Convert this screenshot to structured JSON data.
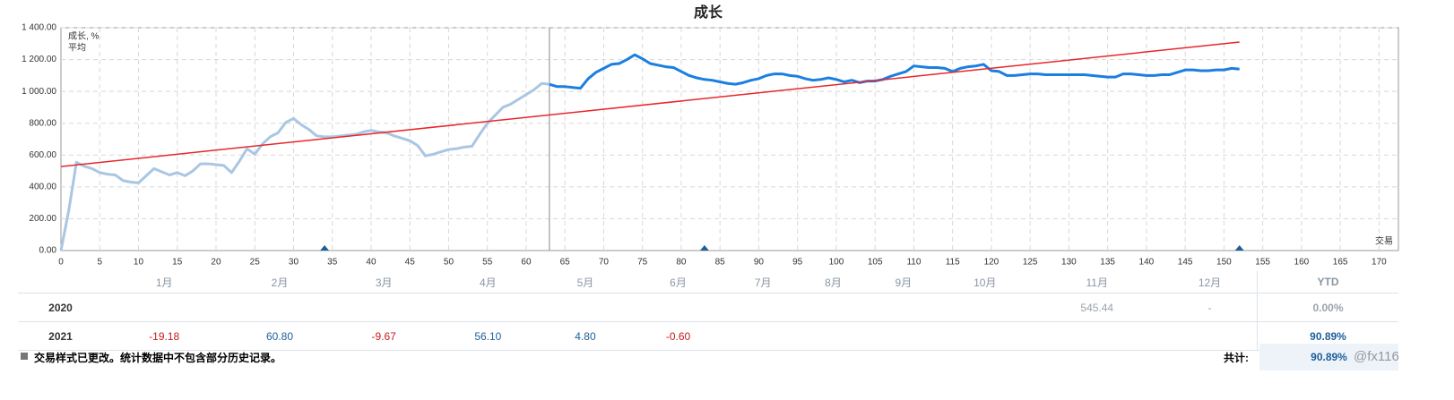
{
  "chart_data": {
    "type": "line",
    "title": "成长",
    "divider_x": 63,
    "history_color": "#a9c6e2",
    "xlim": [
      0,
      172.5
    ],
    "ylim": [
      0,
      1400
    ],
    "xticks": [
      0,
      5,
      10,
      15,
      20,
      25,
      30,
      35,
      40,
      45,
      50,
      55,
      60,
      65,
      70,
      75,
      80,
      85,
      90,
      95,
      100,
      105,
      110,
      115,
      120,
      125,
      130,
      135,
      140,
      145,
      150,
      155,
      160,
      165,
      170
    ],
    "yticks": [
      {
        "value": 0,
        "label": "0.00"
      },
      {
        "value": 200,
        "label": "200.00"
      },
      {
        "value": 400,
        "label": "400.00"
      },
      {
        "value": 600,
        "label": "600.00"
      },
      {
        "value": 800,
        "label": "800.00"
      },
      {
        "value": 1000,
        "label": "1 000.00"
      },
      {
        "value": 1200,
        "label": "1 200.00"
      },
      {
        "value": 1400,
        "label": "1 400.00"
      }
    ],
    "grid": true,
    "legend": "top-left",
    "x": [
      0,
      1,
      2,
      3,
      4,
      5,
      6,
      7,
      8,
      9,
      10,
      11,
      12,
      13,
      14,
      15,
      16,
      17,
      18,
      19,
      20,
      21,
      22,
      23,
      24,
      25,
      26,
      27,
      28,
      29,
      30,
      31,
      32,
      33,
      34,
      35,
      36,
      37,
      38,
      39,
      40,
      41,
      42,
      43,
      44,
      45,
      46,
      47,
      48,
      49,
      50,
      51,
      52,
      53,
      54,
      55,
      56,
      57,
      58,
      59,
      60,
      61,
      62,
      63,
      64,
      65,
      66,
      67,
      68,
      69,
      70,
      71,
      72,
      73,
      74,
      75,
      76,
      77,
      78,
      79,
      80,
      81,
      82,
      83,
      84,
      85,
      86,
      87,
      88,
      89,
      90,
      91,
      92,
      93,
      94,
      95,
      96,
      97,
      98,
      99,
      100,
      101,
      102,
      103,
      104,
      105,
      106,
      107,
      108,
      109,
      110,
      111,
      112,
      113,
      114,
      115,
      116,
      117,
      118,
      119,
      120,
      121,
      122,
      123,
      124,
      125,
      126,
      127,
      128,
      129,
      130,
      131,
      132,
      133,
      134,
      135,
      136,
      137,
      138,
      139,
      140,
      141,
      142,
      143,
      144,
      145,
      146,
      147,
      148,
      149,
      150,
      151,
      152
    ],
    "series": [
      {
        "name": "成长, %",
        "color": "#1a7fe0",
        "values": [
          0,
          250,
          555,
          530,
          515,
          490,
          480,
          475,
          440,
          430,
          425,
          470,
          515,
          495,
          475,
          490,
          470,
          500,
          545,
          545,
          540,
          535,
          490,
          560,
          640,
          605,
          670,
          715,
          740,
          805,
          830,
          790,
          760,
          720,
          715,
          715,
          720,
          725,
          730,
          745,
          755,
          745,
          740,
          720,
          705,
          690,
          660,
          595,
          605,
          620,
          635,
          640,
          650,
          655,
          730,
          800,
          850,
          900,
          920,
          950,
          980,
          1010,
          1050,
          1045,
          1030,
          1030,
          1025,
          1020,
          1080,
          1120,
          1145,
          1170,
          1175,
          1200,
          1230,
          1205,
          1175,
          1165,
          1155,
          1150,
          1125,
          1100,
          1085,
          1075,
          1070,
          1060,
          1050,
          1045,
          1055,
          1070,
          1080,
          1100,
          1110,
          1110,
          1100,
          1095,
          1080,
          1070,
          1075,
          1085,
          1075,
          1060,
          1070,
          1055,
          1065,
          1065,
          1075,
          1095,
          1110,
          1125,
          1160,
          1155,
          1150,
          1150,
          1145,
          1125,
          1145,
          1155,
          1160,
          1170,
          1130,
          1125,
          1100,
          1100,
          1105,
          1110,
          1110,
          1105,
          1105,
          1105,
          1105,
          1105,
          1105,
          1100,
          1095,
          1090,
          1090,
          1110,
          1110,
          1105,
          1100,
          1100,
          1105,
          1105,
          1120,
          1135,
          1135,
          1130,
          1130,
          1135,
          1135,
          1145,
          1140
        ]
      }
    ],
    "trend": {
      "name": "平均",
      "color": "#e8262a",
      "x": [
        0,
        152
      ],
      "values": [
        528,
        1310
      ]
    },
    "trade_markers": {
      "label": "交易",
      "color": "#1d5f9a",
      "x": [
        34,
        83,
        152
      ]
    }
  },
  "table": {
    "months": [
      "1月",
      "2月",
      "3月",
      "4月",
      "5月",
      "6月",
      "7月",
      "8月",
      "9月",
      "10月",
      "11月",
      "12月"
    ],
    "ytd_header": "YTD",
    "rows": [
      {
        "year": "2020",
        "cells": [
          null,
          null,
          null,
          null,
          null,
          null,
          null,
          null,
          null,
          null,
          "545.44",
          "-"
        ],
        "ytd": "0.00%"
      },
      {
        "year": "2021",
        "cells": [
          "-19.18",
          "60.80",
          "-9.67",
          "56.10",
          "4.80",
          "-0.60",
          null,
          null,
          null,
          null,
          null,
          null
        ],
        "ytd": "90.89%"
      }
    ]
  },
  "footer": {
    "note": "交易样式已更改。统计数据中不包含部分历史记录。",
    "total_label": "共计:",
    "total": "90.89%",
    "watermark": "@fx116"
  }
}
